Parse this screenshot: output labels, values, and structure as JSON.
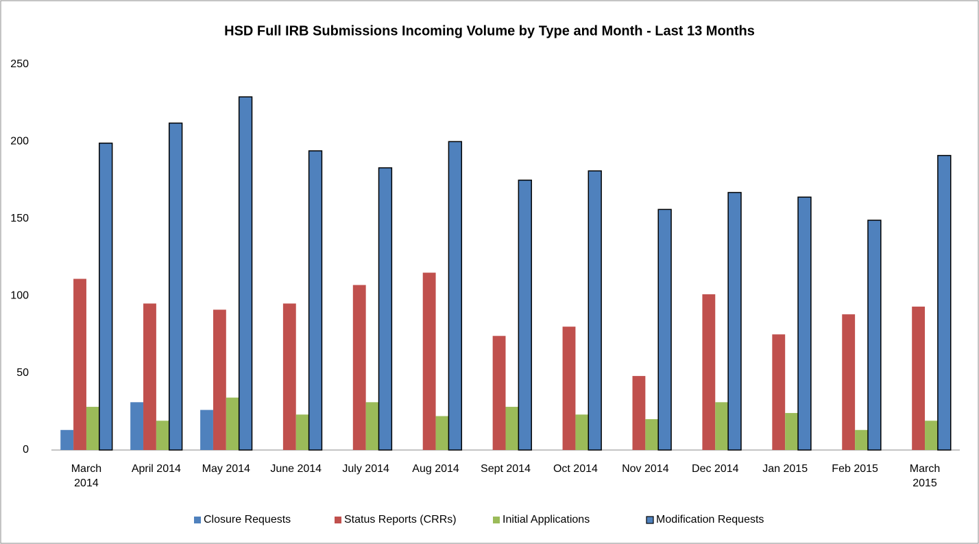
{
  "chart_data": {
    "type": "bar",
    "title": "HSD Full IRB Submissions Incoming Volume by Type and Month - Last 13 Months",
    "categories": [
      "March 2014",
      "April 2014",
      "May 2014",
      "June 2014",
      "July 2014",
      "Aug 2014",
      "Sept 2014",
      "Oct 2014",
      "Nov 2014",
      "Dec 2014",
      "Jan 2015",
      "Feb 2015",
      "March 2015"
    ],
    "series": [
      {
        "name": "Closure Requests",
        "color": "#4f81bd",
        "values": [
          13,
          31,
          26,
          0,
          0,
          0,
          0,
          0,
          0,
          0,
          0,
          0,
          0
        ]
      },
      {
        "name": "Status Reports (CRRs)",
        "color": "#c0504d",
        "values": [
          111,
          95,
          91,
          95,
          107,
          115,
          74,
          80,
          48,
          101,
          75,
          88,
          93
        ]
      },
      {
        "name": "Initial Applications",
        "color": "#9bbb59",
        "values": [
          28,
          19,
          34,
          23,
          31,
          22,
          28,
          23,
          20,
          31,
          24,
          13,
          19
        ]
      },
      {
        "name": "Modification Requests",
        "color": "#4f81bd",
        "outline": "#000000",
        "values": [
          199,
          212,
          229,
          194,
          183,
          200,
          175,
          181,
          156,
          167,
          164,
          149,
          191
        ]
      }
    ],
    "ylim": [
      0,
      250
    ],
    "yticks": [
      0,
      50,
      100,
      150,
      200,
      250
    ],
    "grid": false,
    "legend": "bottom"
  }
}
